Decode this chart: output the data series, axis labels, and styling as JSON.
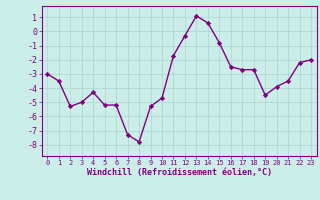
{
  "x": [
    0,
    1,
    2,
    3,
    4,
    5,
    6,
    7,
    8,
    9,
    10,
    11,
    12,
    13,
    14,
    15,
    16,
    17,
    18,
    19,
    20,
    21,
    22,
    23
  ],
  "y": [
    -3.0,
    -3.5,
    -5.3,
    -5.0,
    -4.3,
    -5.2,
    -5.2,
    -7.3,
    -7.8,
    -5.3,
    -4.7,
    -1.7,
    -0.3,
    1.1,
    0.6,
    -0.8,
    -2.5,
    -2.7,
    -2.7,
    -4.5,
    -3.9,
    -3.5,
    -2.2,
    -2.0
  ],
  "line_color": "#800080",
  "marker": "D",
  "marker_size": 2.2,
  "linewidth": 1.0,
  "bg_color": "#cceee8",
  "grid_color": "#aad4ce",
  "xlabel": "Windchill (Refroidissement éolien,°C)",
  "xlabel_color": "#800080",
  "xlim": [
    -0.5,
    23.5
  ],
  "ylim": [
    -8.8,
    1.8
  ],
  "yticks": [
    1,
    0,
    -1,
    -2,
    -3,
    -4,
    -5,
    -6,
    -7,
    -8
  ],
  "xticks": [
    0,
    1,
    2,
    3,
    4,
    5,
    6,
    7,
    8,
    9,
    10,
    11,
    12,
    13,
    14,
    15,
    16,
    17,
    18,
    19,
    20,
    21,
    22,
    23
  ],
  "tick_color": "#800080",
  "spine_color": "#800080",
  "tick_fontsize": 5,
  "ytick_fontsize": 6,
  "xlabel_fontsize": 6
}
